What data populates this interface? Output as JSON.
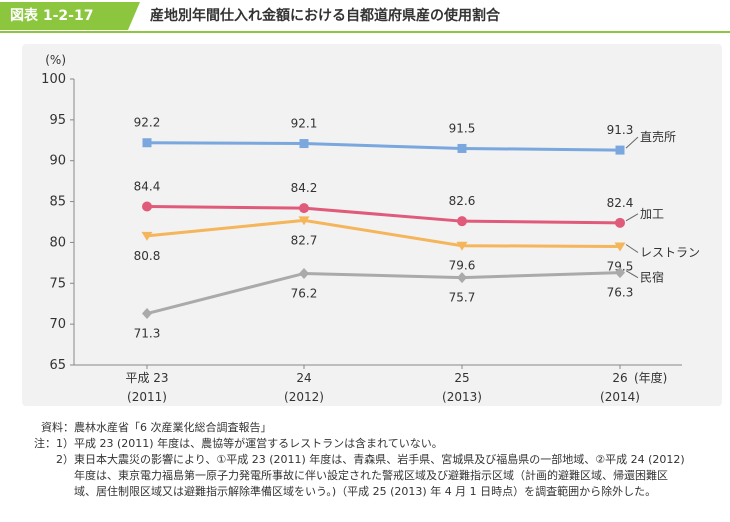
{
  "header": {
    "figure_label": "図表 1-2-17",
    "title": "産地別年間仕入れ金額における自都道府県産の使用割合"
  },
  "chart_data": {
    "type": "line",
    "ylabel": "(%)",
    "ylim": [
      65,
      100
    ],
    "yticks": [
      65,
      70,
      75,
      80,
      85,
      90,
      95,
      100
    ],
    "grid": false,
    "categories": [
      "平成 23",
      "24",
      "25",
      "26"
    ],
    "category_sublabels": [
      "(2011)",
      "(2012)",
      "(2013)",
      "(2014)"
    ],
    "x_unit_label": "(年度)",
    "series": [
      {
        "name": "直売所",
        "values": [
          92.2,
          92.1,
          91.5,
          91.3
        ],
        "labels": [
          "92.2",
          "92.1",
          "91.5",
          "91.3"
        ],
        "color": "#7aa7dd",
        "marker": "square",
        "label_pos": "above"
      },
      {
        "name": "加工",
        "values": [
          84.4,
          84.2,
          82.6,
          82.4
        ],
        "labels": [
          "84.4",
          "84.2",
          "82.6",
          "82.4"
        ],
        "color": "#e05a7a",
        "marker": "circle",
        "label_pos": "above"
      },
      {
        "name": "レストラン",
        "values": [
          80.8,
          82.7,
          79.6,
          79.5
        ],
        "labels": [
          "80.8",
          "82.7",
          "79.6",
          "79.5"
        ],
        "color": "#f5b55a",
        "marker": "triangle-down",
        "label_pos": "below"
      },
      {
        "name": "民宿",
        "values": [
          71.3,
          76.2,
          75.7,
          76.3
        ],
        "labels": [
          "71.3",
          "76.2",
          "75.7",
          "76.3"
        ],
        "color": "#aaaaaa",
        "marker": "diamond",
        "label_pos": "below"
      }
    ]
  },
  "notes": {
    "source_key": "資料：",
    "source": "農林水産省「6 次産業化総合調査報告」",
    "note_key": "注：1）",
    "note1": "平成 23 (2011) 年度は、農協等が運営するレストランは含まれていない。",
    "note2_key": "2）",
    "note2_line1": "東日本大震災の影響により、①平成 23 (2011) 年度は、青森県、岩手県、宮城県及び福島県の一部地域、②平成 24 (2012)",
    "note2_line2": "年度は、東京電力福島第一原子力発電所事故に伴い設定された警戒区域及び避難指示区域（計画的避難区域、帰還困難区",
    "note2_line3": "域、居住制限区域又は避難指示解除準備区域をいう。)（平成 25 (2013) 年 4 月 1 日時点）を調査範囲から除外した。"
  }
}
